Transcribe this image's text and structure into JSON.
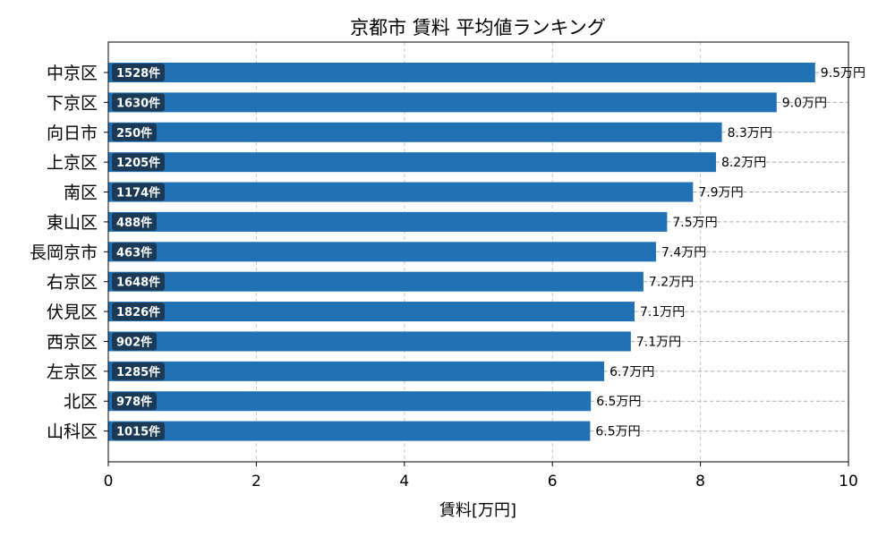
{
  "chart_data": {
    "type": "bar",
    "orientation": "horizontal",
    "title": "京都市 賃料 平均値ランキング",
    "xlabel": "賃料[万円]",
    "ylabel": "",
    "xlim": [
      0,
      10
    ],
    "xticks": [
      "0",
      "2",
      "4",
      "6",
      "8",
      "10"
    ],
    "grid": true,
    "bar_color": "#2171b5",
    "badge_color": "#1a3a57",
    "categories": [
      "中京区",
      "下京区",
      "向日市",
      "上京区",
      "南区",
      "東山区",
      "長岡京市",
      "右京区",
      "伏見区",
      "西京区",
      "左京区",
      "北区",
      "山科区"
    ],
    "values": [
      9.55,
      9.03,
      8.29,
      8.21,
      7.9,
      7.55,
      7.4,
      7.23,
      7.11,
      7.06,
      6.7,
      6.52,
      6.51
    ],
    "value_labels": [
      "9.5万円",
      "9.0万円",
      "8.3万円",
      "8.2万円",
      "7.9万円",
      "7.5万円",
      "7.4万円",
      "7.2万円",
      "7.1万円",
      "7.1万円",
      "6.7万円",
      "6.5万円",
      "6.5万円"
    ],
    "counts": [
      "1528件",
      "1630件",
      "250件",
      "1205件",
      "1174件",
      "488件",
      "463件",
      "1648件",
      "1826件",
      "902件",
      "1285件",
      "978件",
      "1015件"
    ]
  }
}
